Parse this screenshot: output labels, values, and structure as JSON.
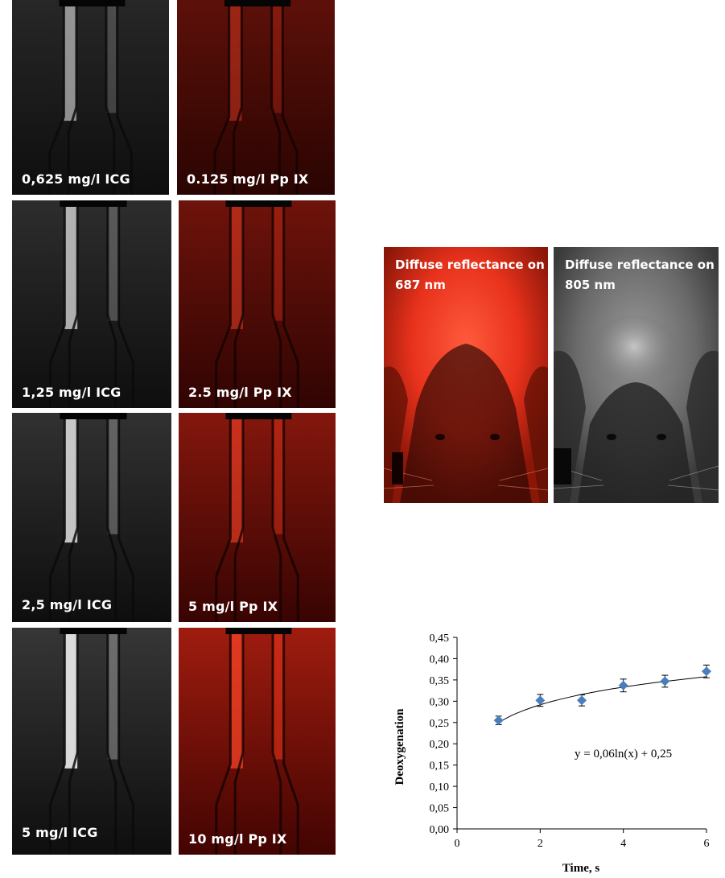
{
  "panels": [
    {
      "caption": "0,625 mg/l ICG",
      "kind": "icg",
      "intensity": 0.45
    },
    {
      "caption": "0.125 mg/l Pp IX",
      "kind": "ppix",
      "intensity": 0.3
    },
    {
      "caption": "1,25 mg/l ICG",
      "kind": "icg",
      "intensity": 0.65
    },
    {
      "caption": "2.5 mg/l Pp IX",
      "kind": "ppix",
      "intensity": 0.45
    },
    {
      "caption": "2,5 mg/l ICG",
      "kind": "icg",
      "intensity": 0.8
    },
    {
      "caption": "5 mg/l Pp IX",
      "kind": "ppix",
      "intensity": 0.65
    },
    {
      "caption": "5 mg/l ICG",
      "kind": "icg",
      "intensity": 0.95
    },
    {
      "caption": "10 mg/l Pp IX",
      "kind": "ppix",
      "intensity": 0.9
    }
  ],
  "mouse_images": [
    {
      "caption": "Diffuse reflectance on 687 nm",
      "kind": "red"
    },
    {
      "caption": "Diffuse reflectance on 805 nm",
      "kind": "gray"
    }
  ],
  "colors": {
    "ppix_red": "#e8321c",
    "marker": "#4a7ebf",
    "icg_white": "#f2f2f2"
  },
  "chart_data": {
    "type": "scatter",
    "x": [
      1,
      2,
      3,
      4,
      5,
      6
    ],
    "y": [
      0.255,
      0.302,
      0.302,
      0.337,
      0.347,
      0.37
    ],
    "yerr": [
      0.01,
      0.014,
      0.013,
      0.015,
      0.014,
      0.015
    ],
    "xlabel": "Time, s",
    "ylabel": "Deoxygenation",
    "xlim": [
      0,
      6
    ],
    "ylim": [
      0,
      0.45
    ],
    "xticks": [
      "0",
      "2",
      "4",
      "6"
    ],
    "yticks": [
      "0,00",
      "0,05",
      "0,10",
      "0,15",
      "0,20",
      "0,25",
      "0,30",
      "0,35",
      "0,40",
      "0,45"
    ],
    "trendline": {
      "equation": "y = 0,06ln(x) + 0,25",
      "a": 0.06,
      "b": 0.25
    },
    "grid": false
  }
}
